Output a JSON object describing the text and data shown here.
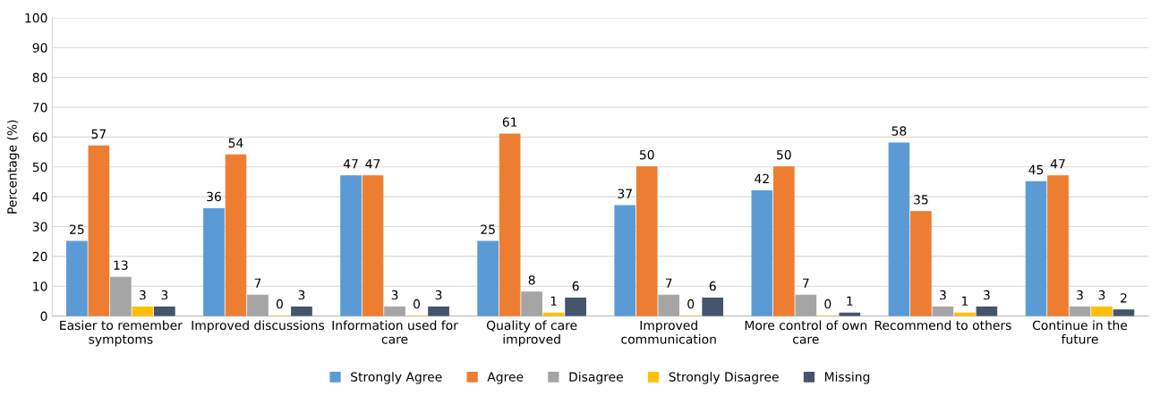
{
  "chart_data": {
    "type": "bar",
    "ylabel": "Percentage (%)",
    "categories": [
      "Easier to remember symptoms",
      "Improved discussions",
      "Information used for care",
      "Quality of care improved",
      "Improved communication",
      "More control of own care",
      "Recommend to others",
      "Continue in the future"
    ],
    "series": [
      {
        "name": "Strongly Agree",
        "color": "#5b9bd5",
        "values": [
          25,
          36,
          47,
          25,
          37,
          42,
          58,
          45
        ]
      },
      {
        "name": "Agree",
        "color": "#ed7d31",
        "values": [
          57,
          54,
          47,
          61,
          50,
          50,
          35,
          47
        ]
      },
      {
        "name": "Disagree",
        "color": "#a5a5a5",
        "values": [
          13,
          7,
          3,
          8,
          7,
          7,
          3,
          3
        ]
      },
      {
        "name": "Strongly Disagree",
        "color": "#ffc000",
        "values": [
          3,
          0,
          0,
          1,
          0,
          0,
          1,
          3
        ]
      },
      {
        "name": "Missing",
        "color": "#44546a",
        "values": [
          3,
          3,
          3,
          6,
          6,
          1,
          3,
          2
        ]
      }
    ],
    "ylim": [
      0,
      100
    ],
    "yticks": [
      0,
      10,
      20,
      30,
      40,
      50,
      60,
      70,
      80,
      90,
      100
    ],
    "grid": "y",
    "legend": "bottom",
    "data_labels": true
  }
}
